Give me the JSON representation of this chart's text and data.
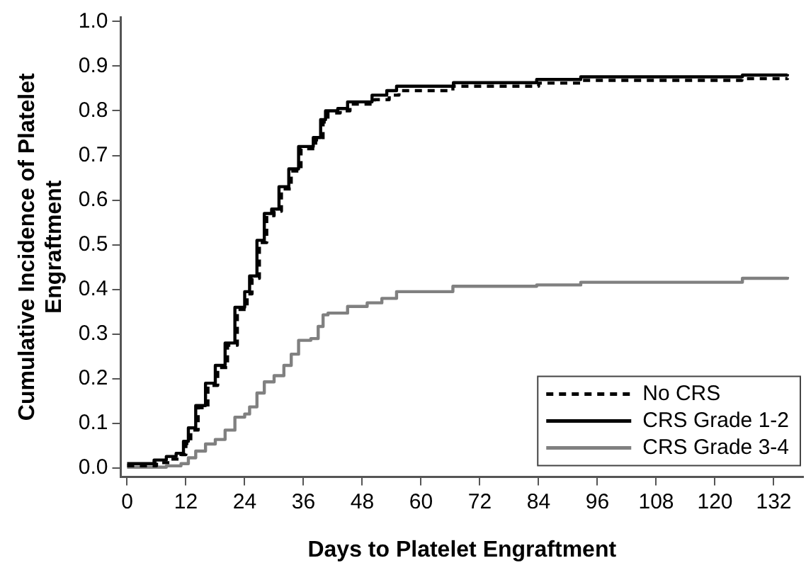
{
  "chart_data": {
    "type": "step",
    "xlabel": "Days to Platelet Engraftment",
    "ylabel": "Cumulative Incidence of Platelet Engraftment",
    "xlim": [
      -1.3,
      138
    ],
    "ylim": [
      -0.02,
      1.01
    ],
    "xticks": [
      0,
      12,
      24,
      36,
      48,
      60,
      72,
      84,
      96,
      108,
      120,
      132
    ],
    "yticks": [
      {
        "value": 0,
        "label": "0.0"
      },
      {
        "value": 0.1,
        "label": "0.1"
      },
      {
        "value": 0.2,
        "label": "0.2"
      },
      {
        "value": 0.3,
        "label": "0.3"
      },
      {
        "value": 0.4,
        "label": "0.4"
      },
      {
        "value": 0.5,
        "label": "0.5"
      },
      {
        "value": 0.6,
        "label": "0.6"
      },
      {
        "value": 0.7,
        "label": "0.7"
      },
      {
        "value": 0.8,
        "label": "0.8"
      },
      {
        "value": 0.9,
        "label": "0.9"
      },
      {
        "value": 1,
        "label": "1.0"
      }
    ],
    "grid": false,
    "legend": "bottom right",
    "marker": "none",
    "series": [
      {
        "name": "No CRS",
        "color": "#000000",
        "line_style": "dashed",
        "x": [
          0,
          6,
          9,
          11,
          12,
          13,
          14.5,
          16.5,
          18.5,
          20.5,
          22.5,
          24.5,
          25.5,
          27,
          28.5,
          30,
          31.5,
          33.5,
          35.5,
          38.5,
          40,
          41,
          43.5,
          45.5,
          50.5,
          53.5,
          55.5,
          66.5,
          84,
          92.5,
          125.5,
          134.8
        ],
        "values": [
          0.005,
          0.012,
          0.02,
          0.03,
          0.055,
          0.085,
          0.135,
          0.185,
          0.225,
          0.275,
          0.355,
          0.39,
          0.425,
          0.505,
          0.565,
          0.575,
          0.625,
          0.665,
          0.715,
          0.735,
          0.775,
          0.795,
          0.8,
          0.815,
          0.825,
          0.835,
          0.845,
          0.855,
          0.862,
          0.868,
          0.872,
          0.873
        ]
      },
      {
        "name": "CRS Grade 1-2",
        "color": "#000000",
        "line_style": "solid",
        "x": [
          0,
          5.5,
          8,
          10,
          11.5,
          12.5,
          14,
          16,
          18,
          20,
          22,
          24,
          25,
          26.5,
          28,
          29.5,
          31,
          33,
          35,
          38,
          39.5,
          40.5,
          43,
          45,
          50,
          53,
          55,
          66.6,
          83.6,
          92.6,
          125.6,
          134.8
        ],
        "values": [
          0.01,
          0.018,
          0.026,
          0.033,
          0.06,
          0.09,
          0.14,
          0.19,
          0.23,
          0.28,
          0.36,
          0.395,
          0.43,
          0.51,
          0.57,
          0.58,
          0.63,
          0.67,
          0.72,
          0.74,
          0.78,
          0.8,
          0.805,
          0.82,
          0.835,
          0.845,
          0.855,
          0.863,
          0.87,
          0.876,
          0.88,
          0.882
        ]
      },
      {
        "name": "CRS Grade 3-4",
        "color": "#808080",
        "line_style": "solid",
        "x": [
          0,
          8,
          11,
          12.5,
          14,
          16,
          18,
          20,
          22,
          24,
          25,
          26.5,
          28,
          30,
          32,
          33.5,
          35,
          37.5,
          39,
          40,
          41,
          45,
          49,
          52,
          55,
          66.5,
          83.6,
          92.6,
          125.6,
          134.8
        ],
        "values": [
          0.002,
          0.005,
          0.01,
          0.023,
          0.038,
          0.054,
          0.064,
          0.085,
          0.114,
          0.121,
          0.137,
          0.168,
          0.193,
          0.207,
          0.23,
          0.255,
          0.286,
          0.29,
          0.317,
          0.343,
          0.347,
          0.362,
          0.37,
          0.38,
          0.395,
          0.407,
          0.41,
          0.416,
          0.425,
          0.428
        ]
      }
    ]
  }
}
